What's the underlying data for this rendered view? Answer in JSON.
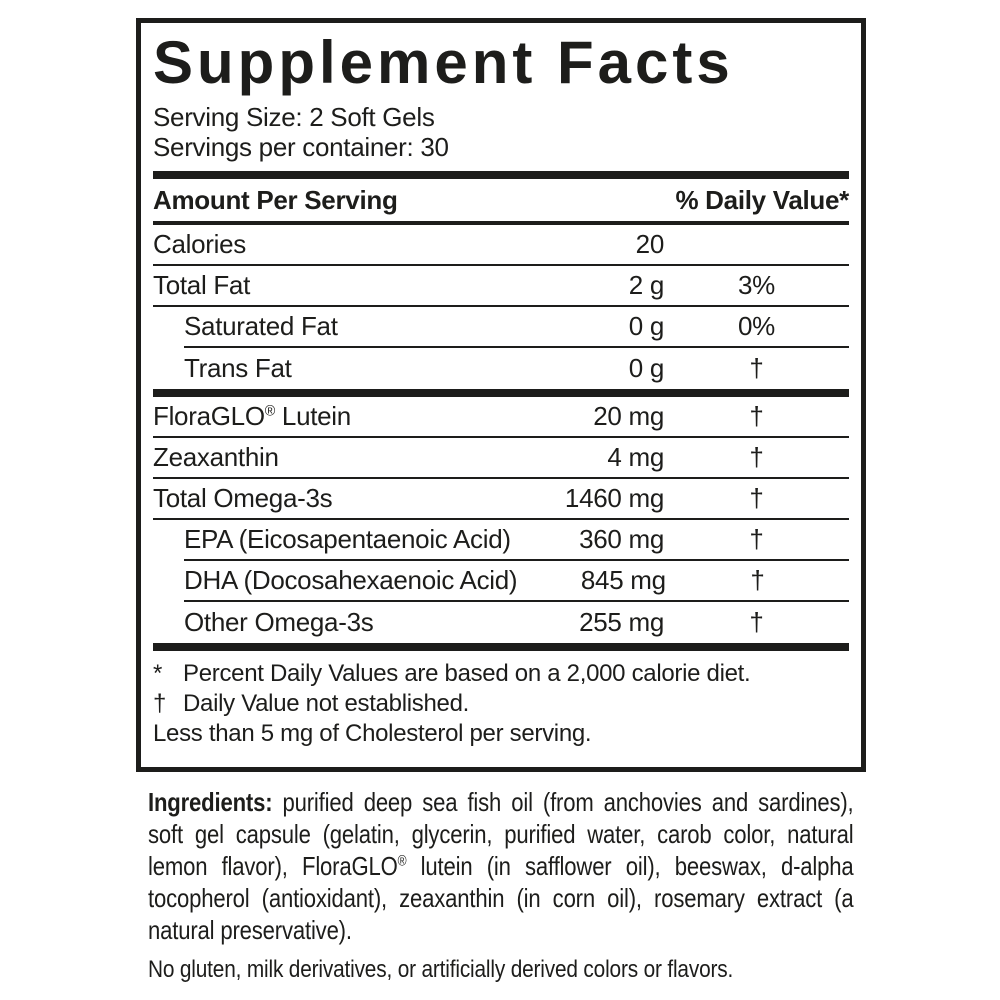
{
  "colors": {
    "text": "#1d1d1b",
    "background": "#ffffff"
  },
  "panel": {
    "title": "Supplement Facts",
    "serving_size": "Serving Size: 2 Soft Gels",
    "servings_per_container": "Servings per container: 30",
    "header": {
      "amount_label": "Amount Per Serving",
      "dv_label": "% Daily Value*"
    },
    "rows": [
      {
        "label": "Calories",
        "amount": "20",
        "dv": ""
      },
      {
        "label": "Total Fat",
        "amount": "2 g",
        "dv": "3%"
      },
      {
        "label": "Saturated Fat",
        "amount": "0 g",
        "dv": "0%",
        "indent": true
      },
      {
        "label": "Trans Fat",
        "amount": "0 g",
        "dv": "†",
        "indent": true
      },
      {
        "label": "FloraGLO",
        "label_sup": "®",
        "label_rest": " Lutein",
        "amount": "20 mg",
        "dv": "†",
        "bar_above": true
      },
      {
        "label": "Zeaxanthin",
        "amount": "4 mg",
        "dv": "†"
      },
      {
        "label": "Total Omega-3s",
        "amount": "1460 mg",
        "dv": "†"
      },
      {
        "label": "EPA (Eicosapentaenoic Acid)",
        "amount": "360 mg",
        "dv": "†",
        "indent": true
      },
      {
        "label": "DHA (Docosahexaenoic Acid)",
        "amount": "845 mg",
        "dv": "†",
        "indent": true
      },
      {
        "label": "Other Omega-3s",
        "amount": "255 mg",
        "dv": "†",
        "indent": true
      }
    ],
    "footnotes": [
      {
        "symbol": "*",
        "text": "Percent Daily Values are based on a 2,000 calorie diet."
      },
      {
        "symbol": "†",
        "text": "Daily Value not established."
      },
      {
        "symbol": "",
        "text": "Less than 5 mg of Cholesterol per serving."
      }
    ]
  },
  "ingredients": {
    "label": "Ingredients:",
    "text_before_reg": " purified deep sea fish oil (from anchovies and sardines), soft gel capsule (gelatin, glycerin, purified water, carob color, natural lemon flavor), FloraGLO",
    "reg": "®",
    "text_after_reg": " lutein (in safflower oil), beeswax, d-alpha tocopherol (antioxidant), zeaxanthin (in corn oil), rosemary extract (a natural preservative)."
  },
  "allergen_note": "No gluten, milk derivatives, or artificially derived colors or flavors."
}
